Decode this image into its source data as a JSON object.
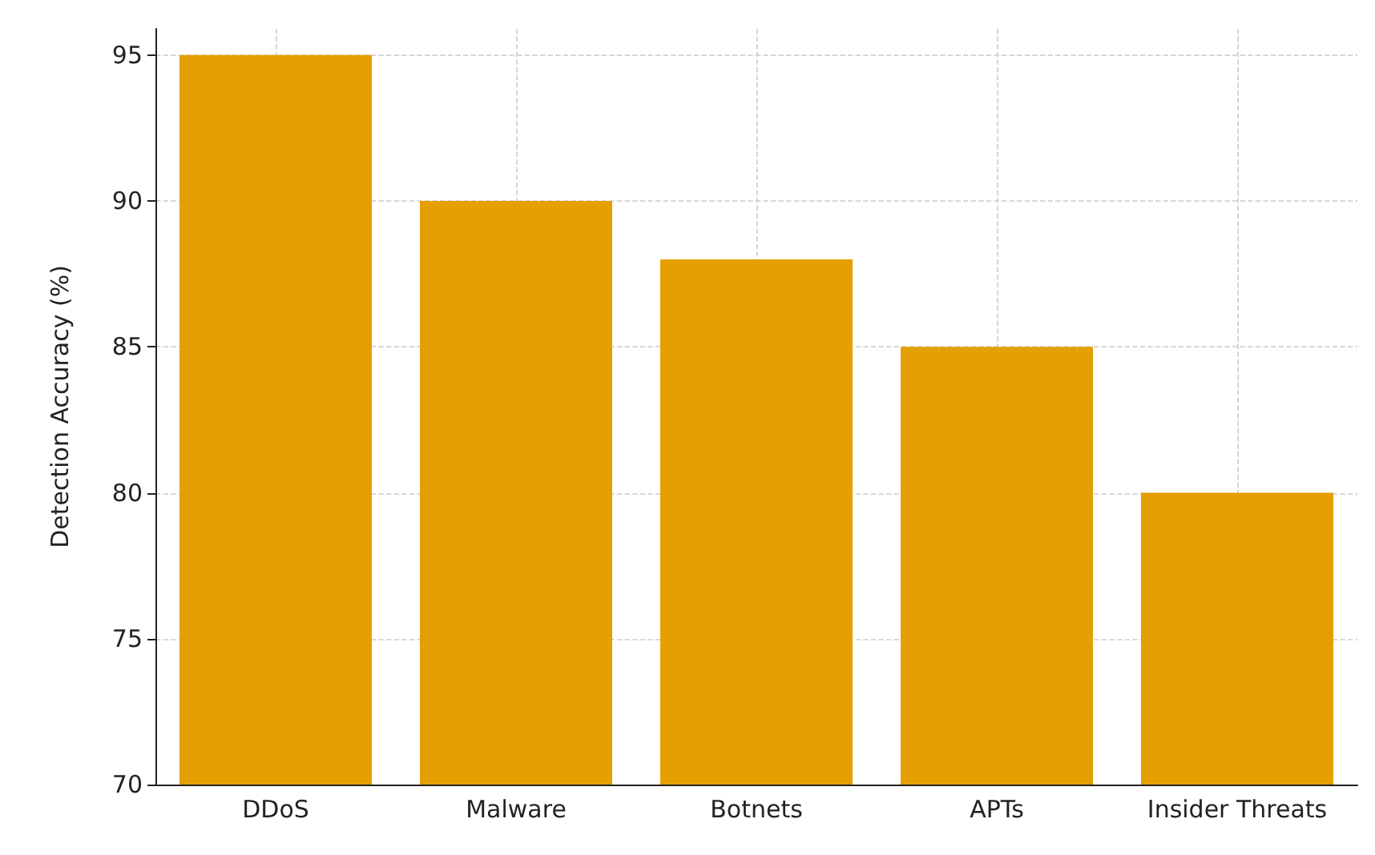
{
  "chart_data": {
    "type": "bar",
    "ylabel": "Detection Accuracy (%)",
    "categories": [
      "DDoS",
      "Malware",
      "Botnets",
      "APTs",
      "Insider Threats"
    ],
    "values": [
      95,
      90,
      88,
      85,
      80
    ],
    "color": "#e49f00",
    "ylim": [
      70,
      95.9
    ],
    "yticks": [
      70,
      75,
      80,
      85,
      90,
      95
    ],
    "grid": true
  }
}
